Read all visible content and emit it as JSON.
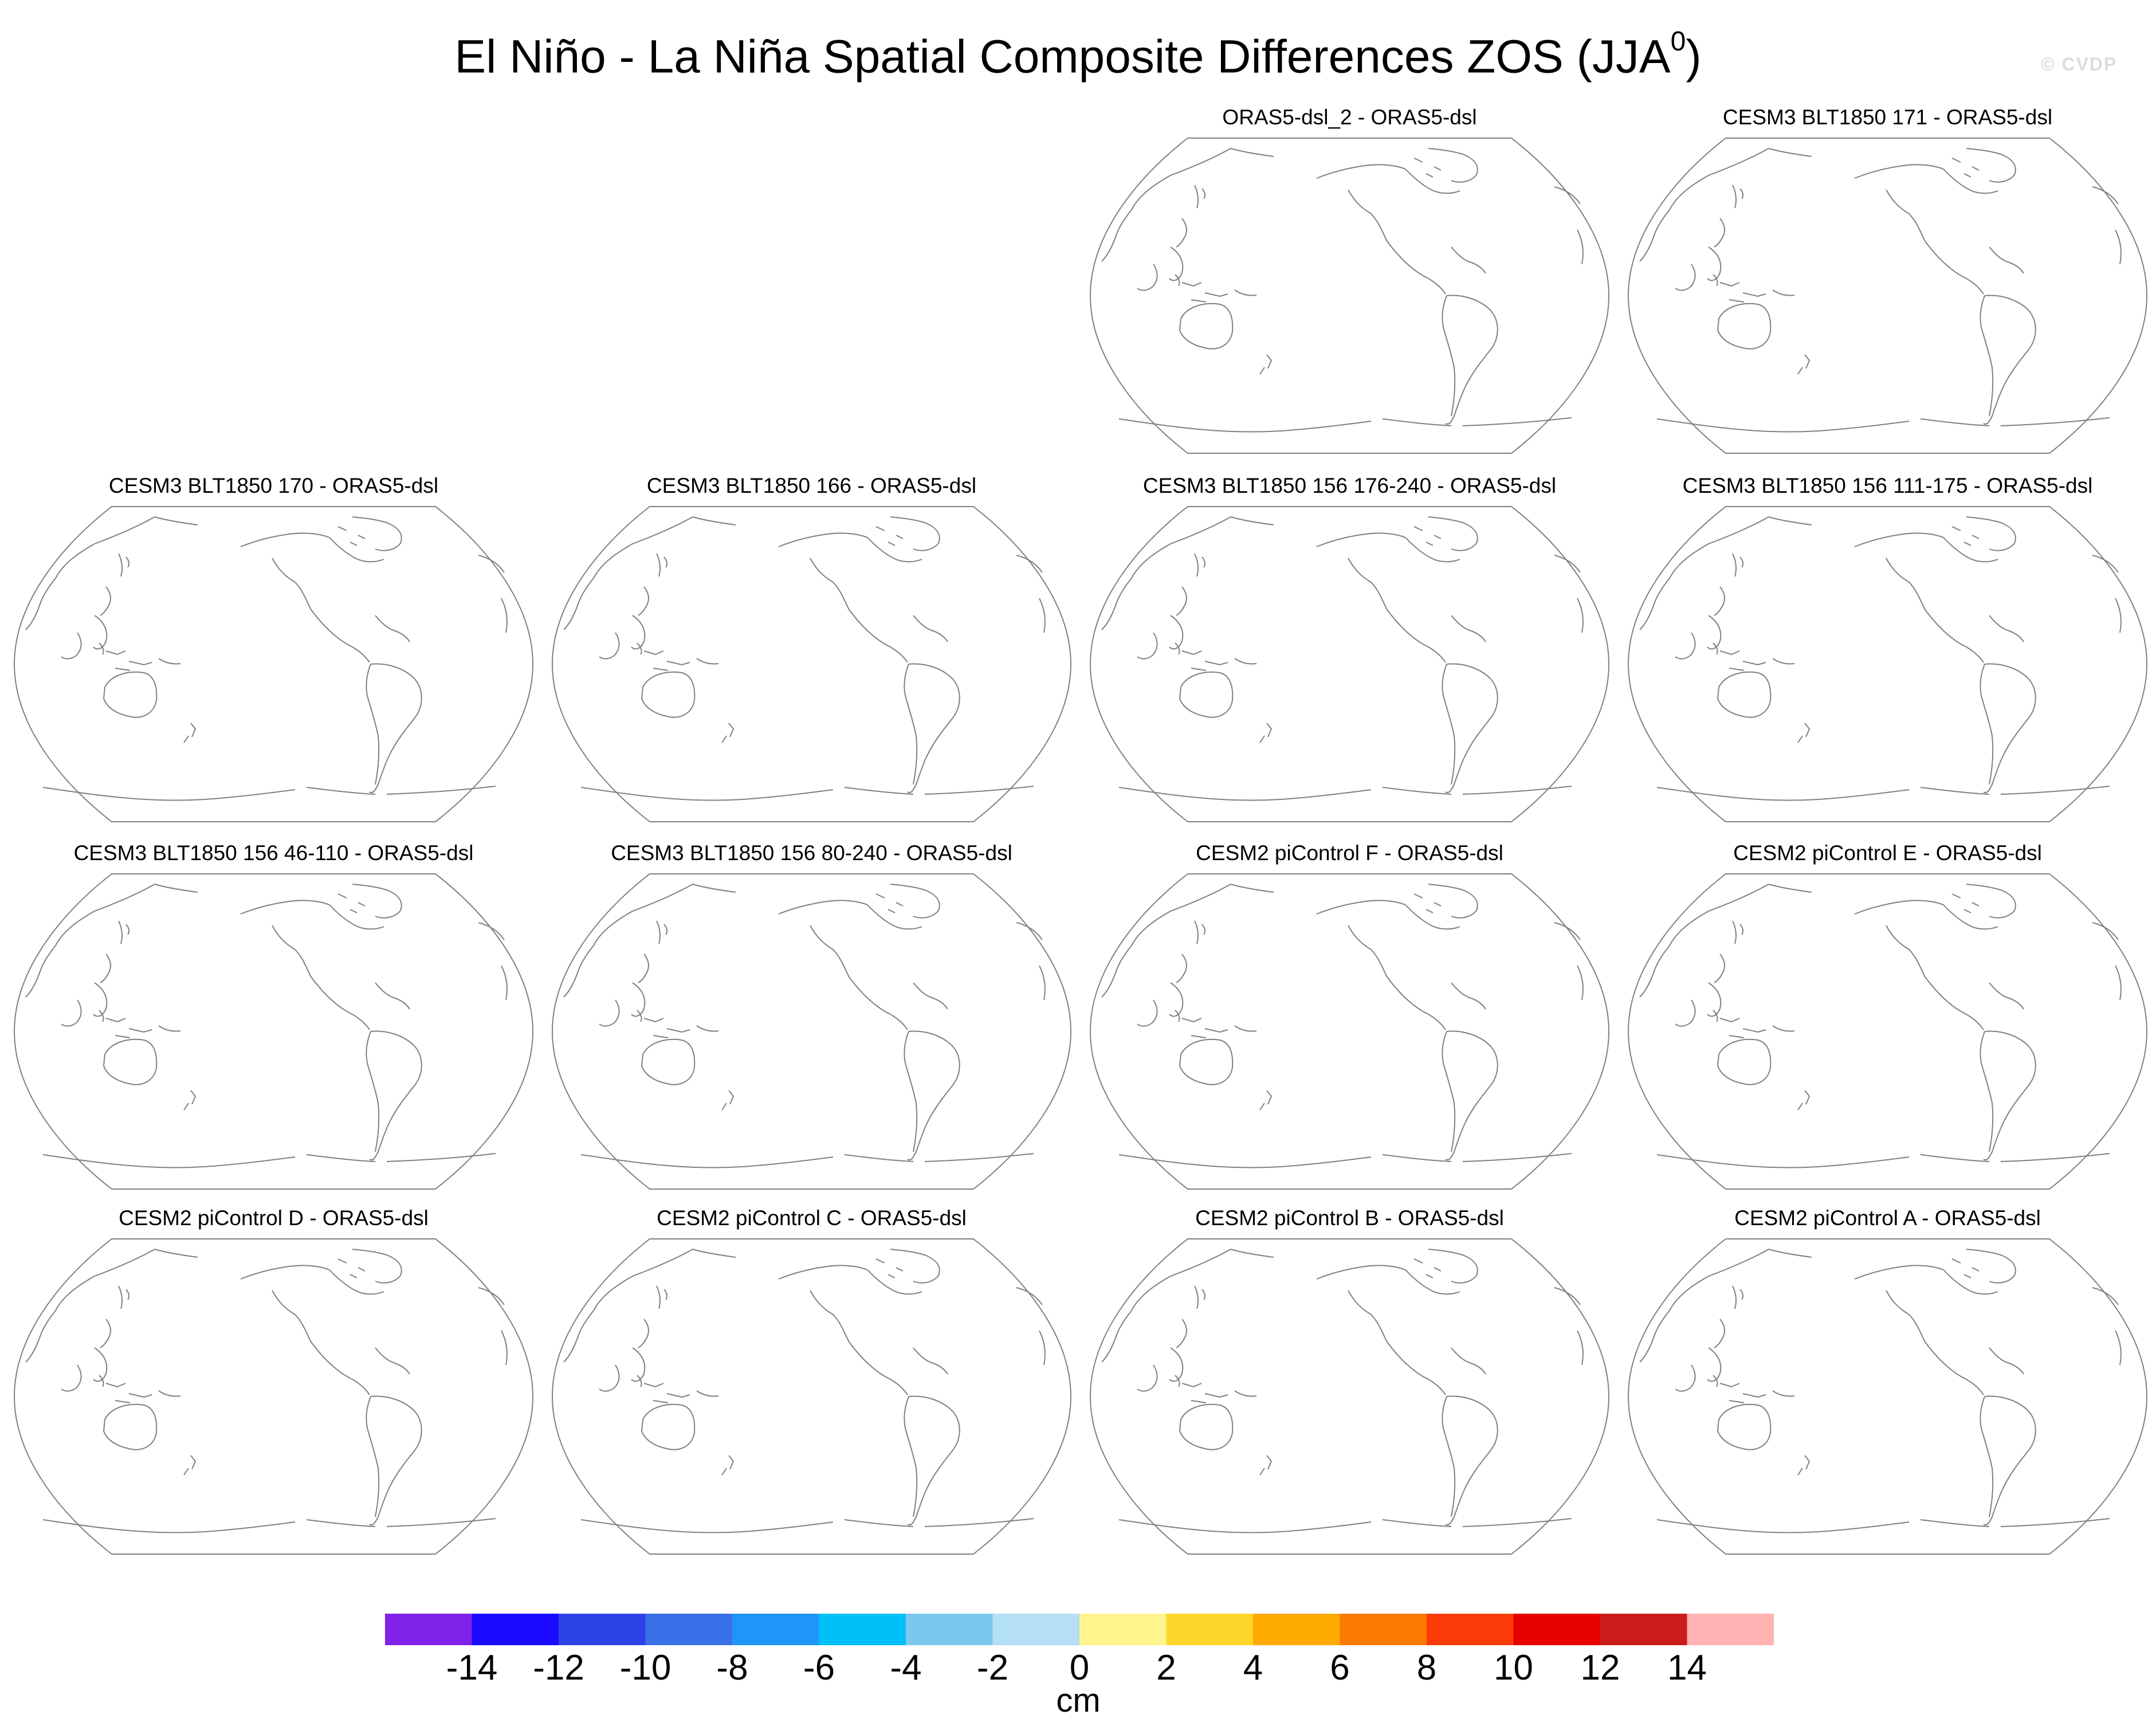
{
  "title": {
    "main": "El Niño - La Niña Spatial Composite Differences ZOS (JJA",
    "superscript": "0",
    "suffix": ")"
  },
  "watermark": "© CVDP",
  "map": {
    "projection": "Robinson",
    "center_longitude": "Pacific-centered",
    "line_color": "#808080"
  },
  "panels": [
    {
      "title": "ORAS5-dsl_2 - ORAS5-dsl"
    },
    {
      "title": "CESM3 BLT1850 171 - ORAS5-dsl"
    },
    {
      "title": "CESM3 BLT1850 170 - ORAS5-dsl"
    },
    {
      "title": "CESM3 BLT1850 166 - ORAS5-dsl"
    },
    {
      "title": "CESM3 BLT1850 156 176-240 - ORAS5-dsl"
    },
    {
      "title": "CESM3 BLT1850 156 111-175 - ORAS5-dsl"
    },
    {
      "title": "CESM3 BLT1850 156 46-110 - ORAS5-dsl"
    },
    {
      "title": "CESM3 BLT1850 156 80-240 - ORAS5-dsl"
    },
    {
      "title": "CESM2 piControl F - ORAS5-dsl"
    },
    {
      "title": "CESM2 piControl E - ORAS5-dsl"
    },
    {
      "title": "CESM2 piControl D - ORAS5-dsl"
    },
    {
      "title": "CESM2 piControl C - ORAS5-dsl"
    },
    {
      "title": "CESM2 piControl B - ORAS5-dsl"
    },
    {
      "title": "CESM2 piControl A - ORAS5-dsl"
    }
  ],
  "colorbar": {
    "unit": "cm",
    "labels": [
      "-14",
      "-12",
      "-10",
      "-8",
      "-6",
      "-4",
      "-2",
      "0",
      "2",
      "4",
      "6",
      "8",
      "10",
      "12",
      "14"
    ],
    "colors": [
      "#8022e8",
      "#1a0aff",
      "#2d42e6",
      "#3a70e8",
      "#1f96f7",
      "#00c0f8",
      "#7ac8ee",
      "#b4dff4",
      "#fff58c",
      "#fdd72a",
      "#fda900",
      "#fd7a00",
      "#fd3c0a",
      "#e60000",
      "#cc1b1b",
      "#ffb2b2"
    ]
  }
}
